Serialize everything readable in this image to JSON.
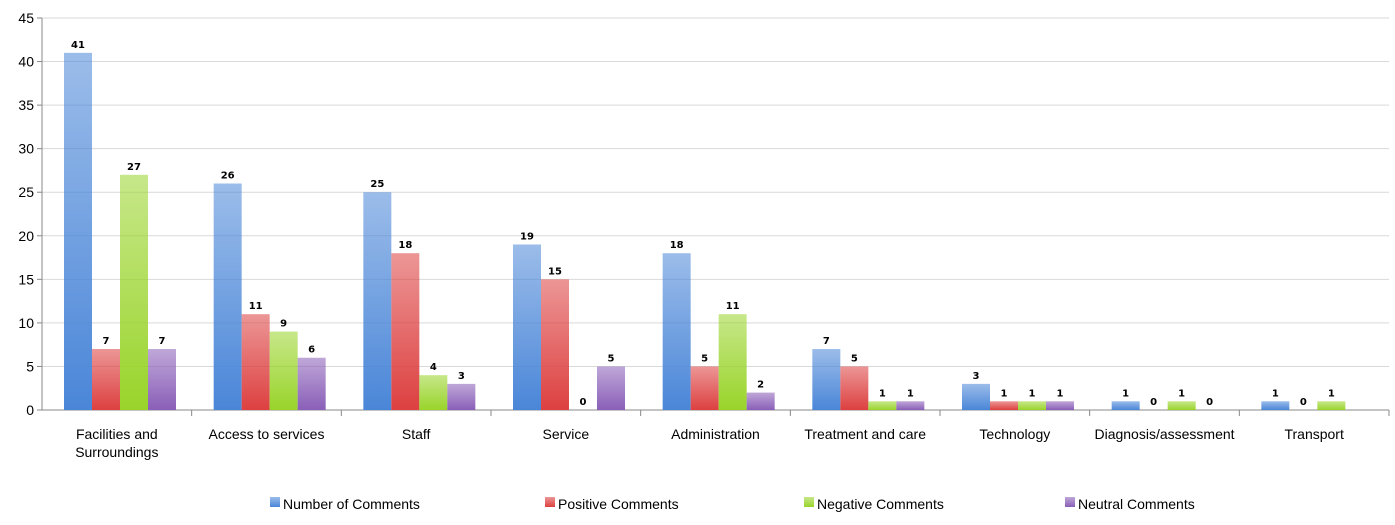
{
  "chart_data": {
    "type": "bar",
    "title": "",
    "xlabel": "",
    "ylabel": "",
    "ylim": [
      0,
      45
    ],
    "y_ticks": [
      "0",
      "5",
      "10",
      "15",
      "20",
      "25",
      "30",
      "35",
      "40",
      "45"
    ],
    "grid": true,
    "legend_position": "bottom",
    "categories": [
      [
        "Facilities and",
        "Surroundings"
      ],
      [
        "Access to services"
      ],
      [
        "Staff"
      ],
      [
        "Service"
      ],
      [
        "Administration"
      ],
      [
        "Treatment and care"
      ],
      [
        "Technology"
      ],
      [
        "Diagnosis/assessment"
      ],
      [
        "Transport"
      ]
    ],
    "series": [
      {
        "name": "Number of Comments",
        "color": "#4a86d8",
        "values": [
          41,
          26,
          25,
          19,
          18,
          7,
          3,
          1,
          1
        ]
      },
      {
        "name": "Positive Comments",
        "color": "#dd4040",
        "values": [
          7,
          11,
          18,
          15,
          5,
          5,
          1,
          0,
          0
        ]
      },
      {
        "name": "Negative Comments",
        "color": "#99d42a",
        "values": [
          27,
          9,
          4,
          0,
          11,
          1,
          1,
          1,
          1
        ]
      },
      {
        "name": "Neutral Comments",
        "color": "#8a5fb8",
        "values": [
          7,
          6,
          3,
          5,
          2,
          1,
          1,
          0,
          null
        ]
      }
    ]
  }
}
